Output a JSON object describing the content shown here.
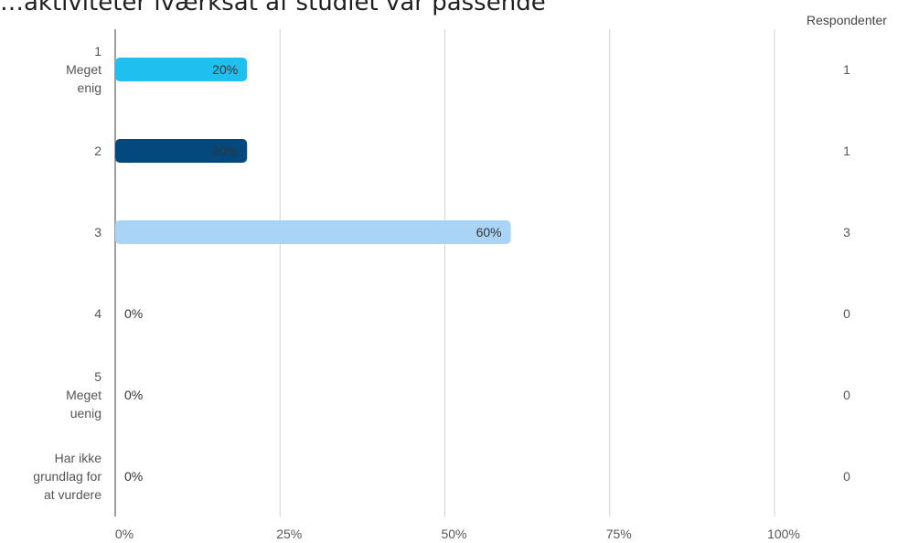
{
  "chart_data": {
    "type": "bar",
    "orientation": "horizontal",
    "title": "…aktiviteter iværksat af studiet var passende",
    "categories": [
      [
        "1",
        "Meget",
        "enig"
      ],
      [
        "2"
      ],
      [
        "3"
      ],
      [
        "4"
      ],
      [
        "5",
        "Meget",
        "uenig"
      ],
      [
        "Har ikke",
        "grundlag for",
        "at vurdere"
      ]
    ],
    "values": [
      20,
      20,
      60,
      0,
      0,
      0
    ],
    "value_labels": [
      "20%",
      "20%",
      "60%",
      "0%",
      "0%",
      "0%"
    ],
    "colors": [
      "#1FC0F0",
      "#03497E",
      "#A9D4F5",
      "#A9D4F5",
      "#A9D4F5",
      "#A9D4F5"
    ],
    "xlim": [
      0,
      100
    ],
    "xticks": [
      "0%",
      "25%",
      "50%",
      "75%",
      "100%"
    ],
    "xtick_values": [
      0,
      25,
      50,
      75,
      100
    ],
    "grid": true,
    "respondents_header": "Respondenter",
    "respondents": [
      "1",
      "1",
      "3",
      "0",
      "0",
      "0"
    ]
  }
}
